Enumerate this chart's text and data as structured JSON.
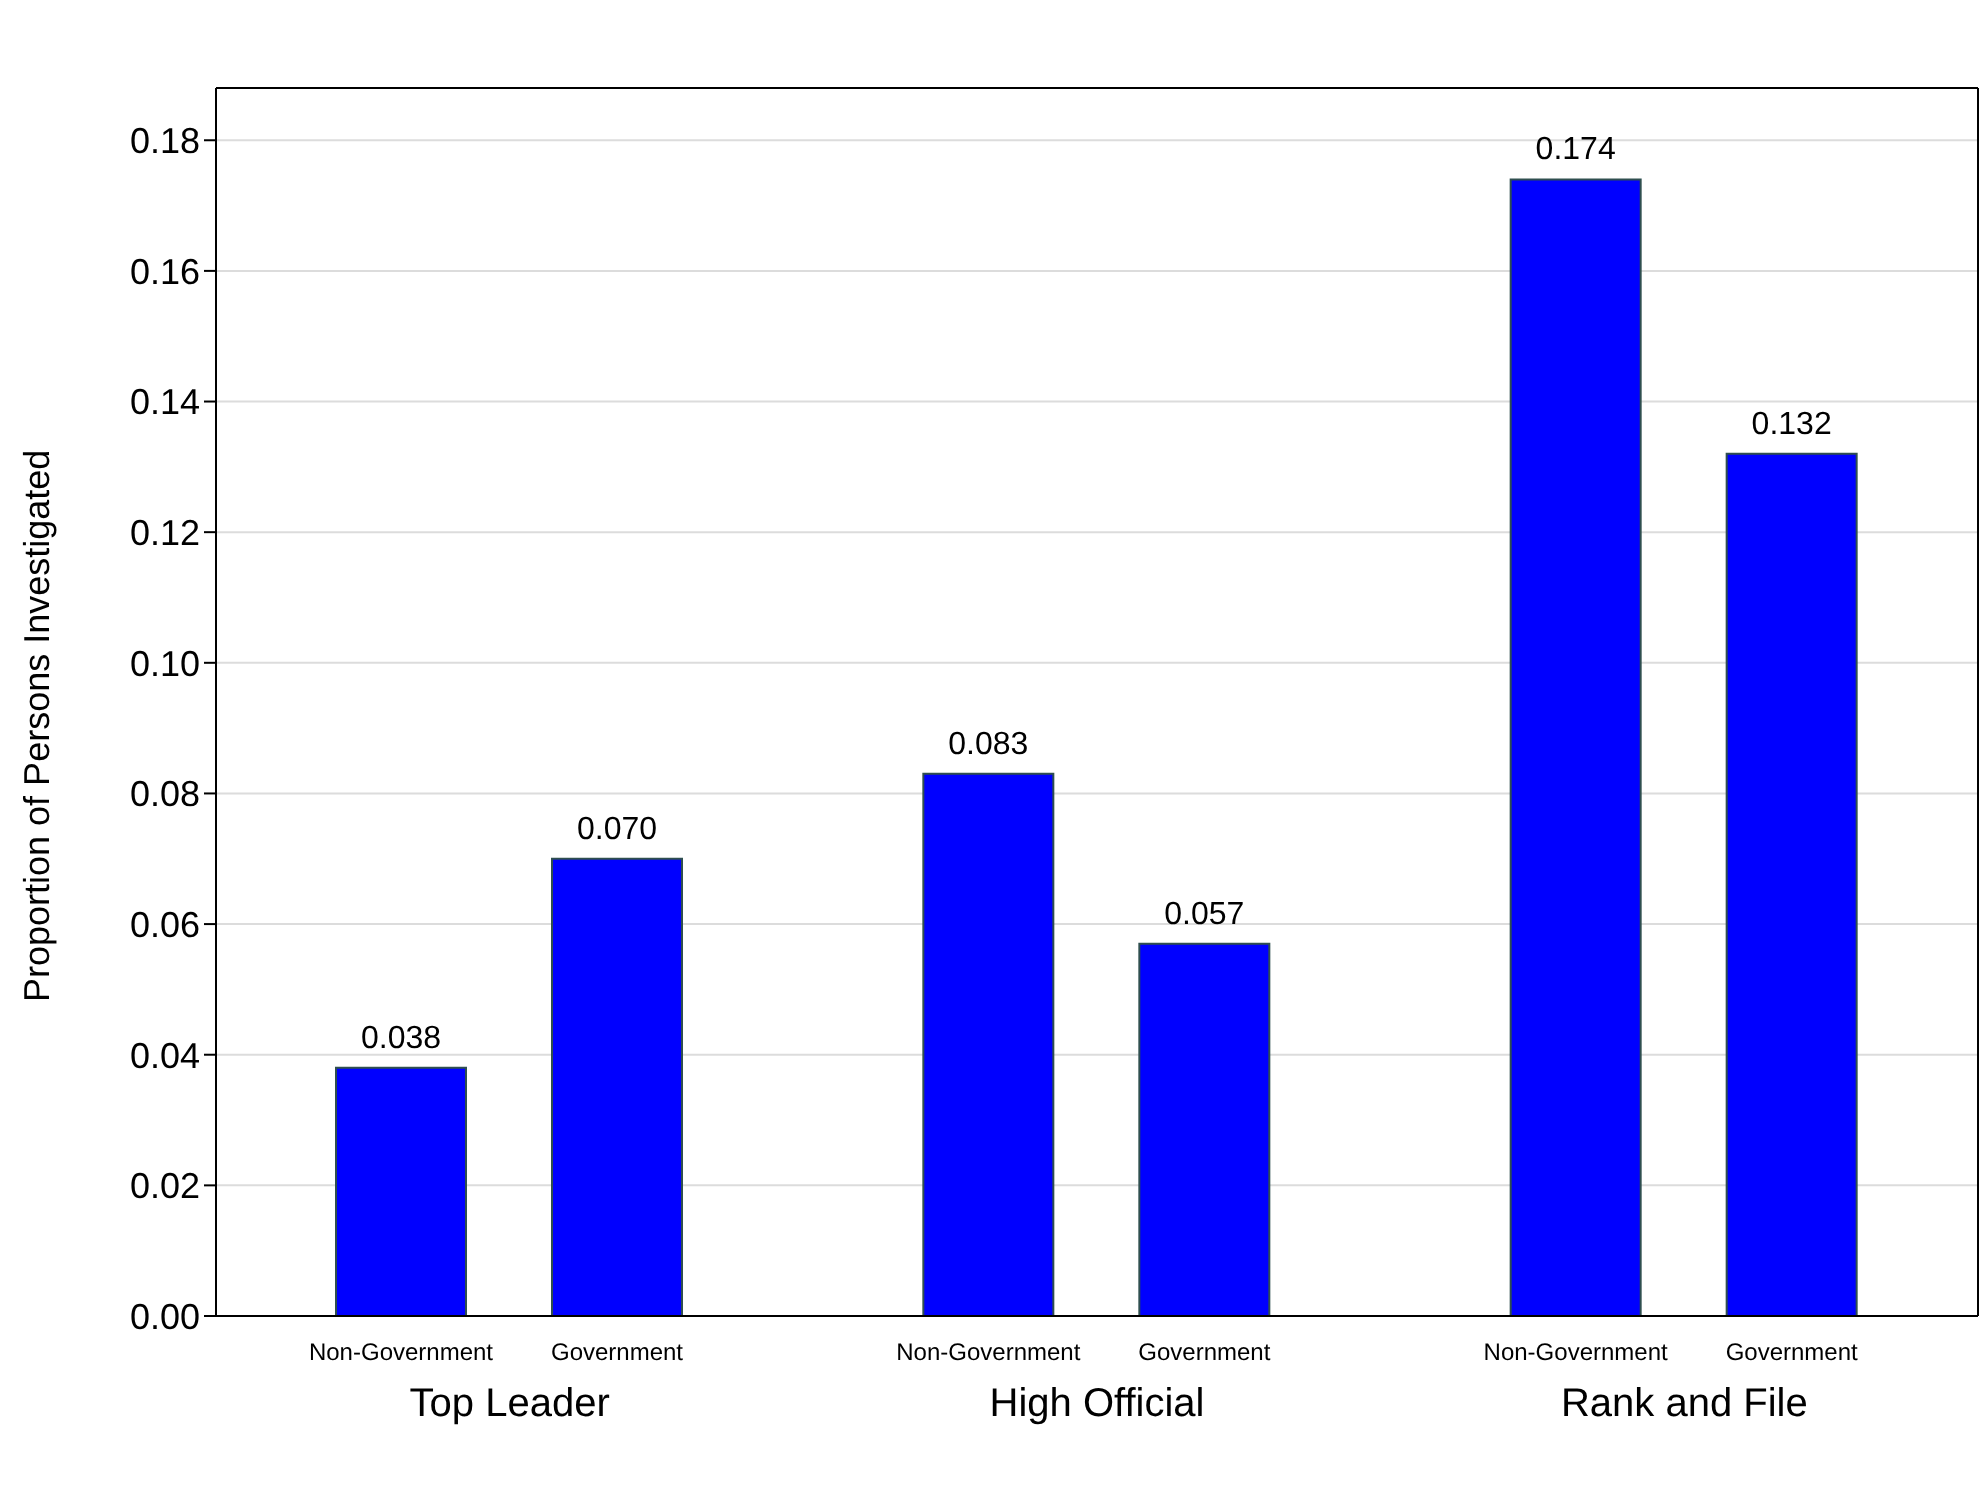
{
  "chart_data": {
    "type": "bar",
    "ylabel": "Proportion of Persons Investigated",
    "categories": [
      "Top Leader",
      "High Official",
      "Rank and File"
    ],
    "series": [
      {
        "name": "Non-Government",
        "color": "#0000ff",
        "values": [
          0.038,
          0.083,
          0.174
        ],
        "value_labels": [
          "0.038",
          "0.083",
          "0.174"
        ]
      },
      {
        "name": "Government",
        "color": "#0000ff",
        "values": [
          0.07,
          0.057,
          0.132
        ],
        "value_labels": [
          "0.070",
          "0.057",
          "0.132"
        ]
      }
    ],
    "ylim": [
      0,
      0.188
    ],
    "yticks": [
      {
        "value": 0,
        "label": "0.00"
      },
      {
        "value": 0.02,
        "label": "0.02"
      },
      {
        "value": 0.04,
        "label": "0.04"
      },
      {
        "value": 0.06,
        "label": "0.06"
      },
      {
        "value": 0.08,
        "label": "0.08"
      },
      {
        "value": 0.1,
        "label": "0.10"
      },
      {
        "value": 0.12,
        "label": "0.12"
      },
      {
        "value": 0.14,
        "label": "0.14"
      },
      {
        "value": 0.16,
        "label": "0.16"
      },
      {
        "value": 0.18,
        "label": "0.18"
      }
    ],
    "grid": "y",
    "legend": false
  }
}
